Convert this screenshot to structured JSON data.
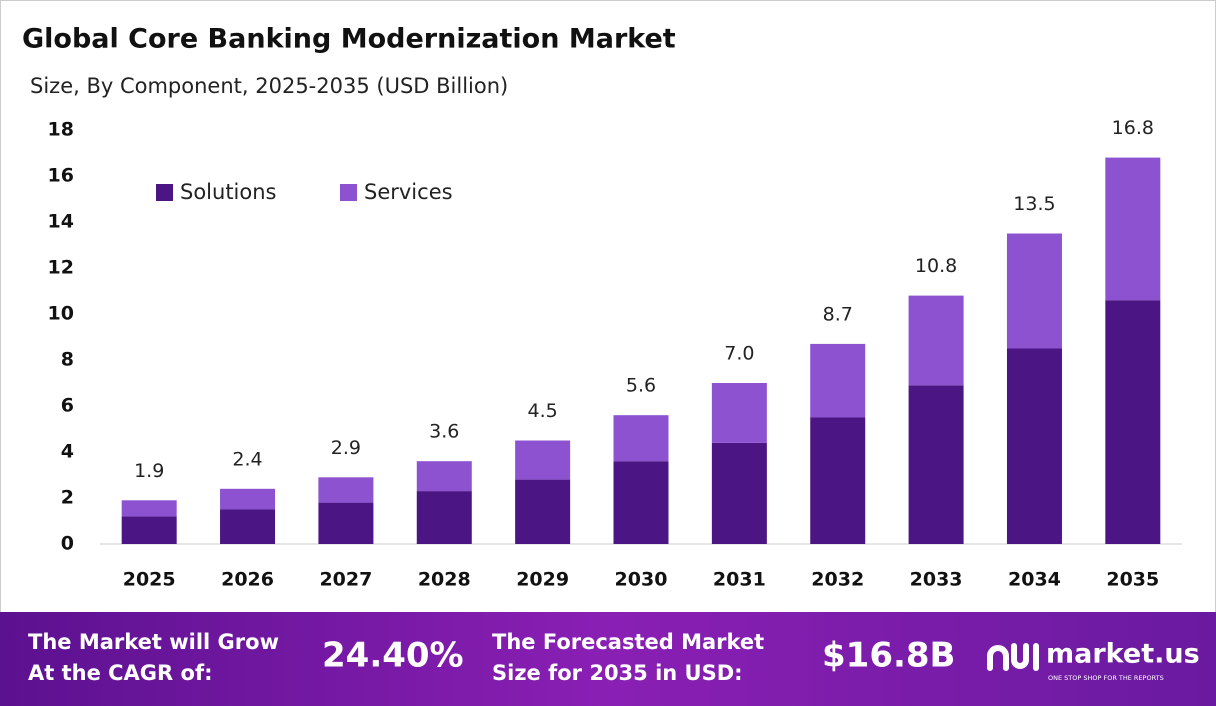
{
  "chart_data": {
    "type": "stacked_bar",
    "title": "Global Core Banking Modernization Market",
    "subtitle": "Size, By Component, 2025-2035 (USD Billion)",
    "categories": [
      "2025",
      "2026",
      "2027",
      "2028",
      "2029",
      "2030",
      "2031",
      "2032",
      "2033",
      "2034",
      "2035"
    ],
    "series": [
      {
        "name": "Solutions",
        "color": "#4b1584",
        "values": [
          1.2,
          1.5,
          1.8,
          2.3,
          2.8,
          3.6,
          4.4,
          5.5,
          6.9,
          8.5,
          10.6
        ]
      },
      {
        "name": "Services",
        "color": "#8c52d0",
        "values": [
          0.7,
          0.9,
          1.1,
          1.3,
          1.7,
          2.0,
          2.6,
          3.2,
          3.9,
          5.0,
          6.2
        ]
      }
    ],
    "total_labels": [
      "1.9",
      "2.4",
      "2.9",
      "3.6",
      "4.5",
      "5.6",
      "7.0",
      "8.7",
      "10.8",
      "13.5",
      "16.8"
    ],
    "ylim": [
      0,
      18
    ],
    "yticks": [
      0,
      2,
      4,
      6,
      8,
      10,
      12,
      14,
      16,
      18
    ],
    "legend": "top-left",
    "grid": false
  },
  "banner": {
    "cagr_text": [
      "The Market will Grow",
      "At the CAGR of:"
    ],
    "cagr": "24.40%",
    "forecast_text": [
      "The Forecasted Market",
      "Size for 2035 in USD:"
    ],
    "forecast": "$16.8B",
    "brand": "market.us",
    "tagline": "ONE STOP SHOP FOR THE REPORTS"
  }
}
